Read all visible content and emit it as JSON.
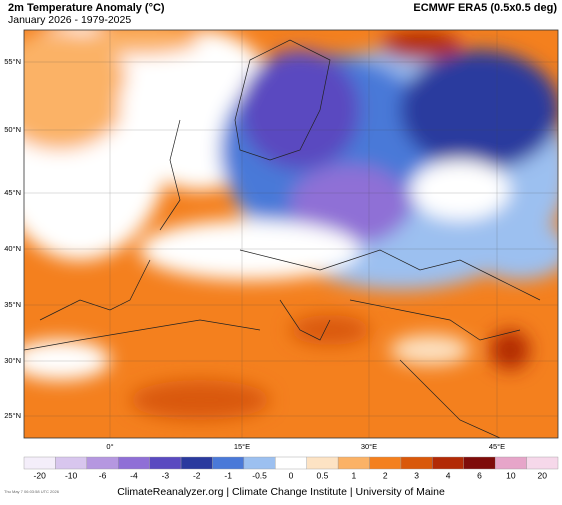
{
  "header": {
    "title": "2m Temperature Anomaly (°C)",
    "subtitle": "January 2026 - 1979-2025",
    "source": "ECMWF ERA5 (0.5x0.5 deg)"
  },
  "map": {
    "lat_labels": [
      "55°N",
      "50°N",
      "45°N",
      "40°N",
      "35°N",
      "30°N",
      "25°N"
    ],
    "lon_labels": [
      "0°",
      "15°E",
      "30°E",
      "45°E"
    ]
  },
  "colorbar": {
    "labels": [
      "-20",
      "-10",
      "-6",
      "-4",
      "-3",
      "-2",
      "-1",
      "-0.5",
      "0",
      "0.5",
      "1",
      "2",
      "3",
      "4",
      "6",
      "10",
      "20"
    ],
    "colors": [
      "#f4eefa",
      "#d8c6ee",
      "#b597e0",
      "#8f6fd6",
      "#5a4ac0",
      "#2a3a9e",
      "#4a79d8",
      "#9cc0f0",
      "#ffffff",
      "#fde3c4",
      "#fbb266",
      "#f4801e",
      "#d9580a",
      "#b22a06",
      "#7e0c0a",
      "#e6a5c9",
      "#f6d8ea"
    ]
  },
  "footer": {
    "credit": "ClimateReanalyzer.org | Climate Change Institute | University of Maine",
    "timestamp": "Thu May 7 06:03:58 UTC 2026"
  }
}
